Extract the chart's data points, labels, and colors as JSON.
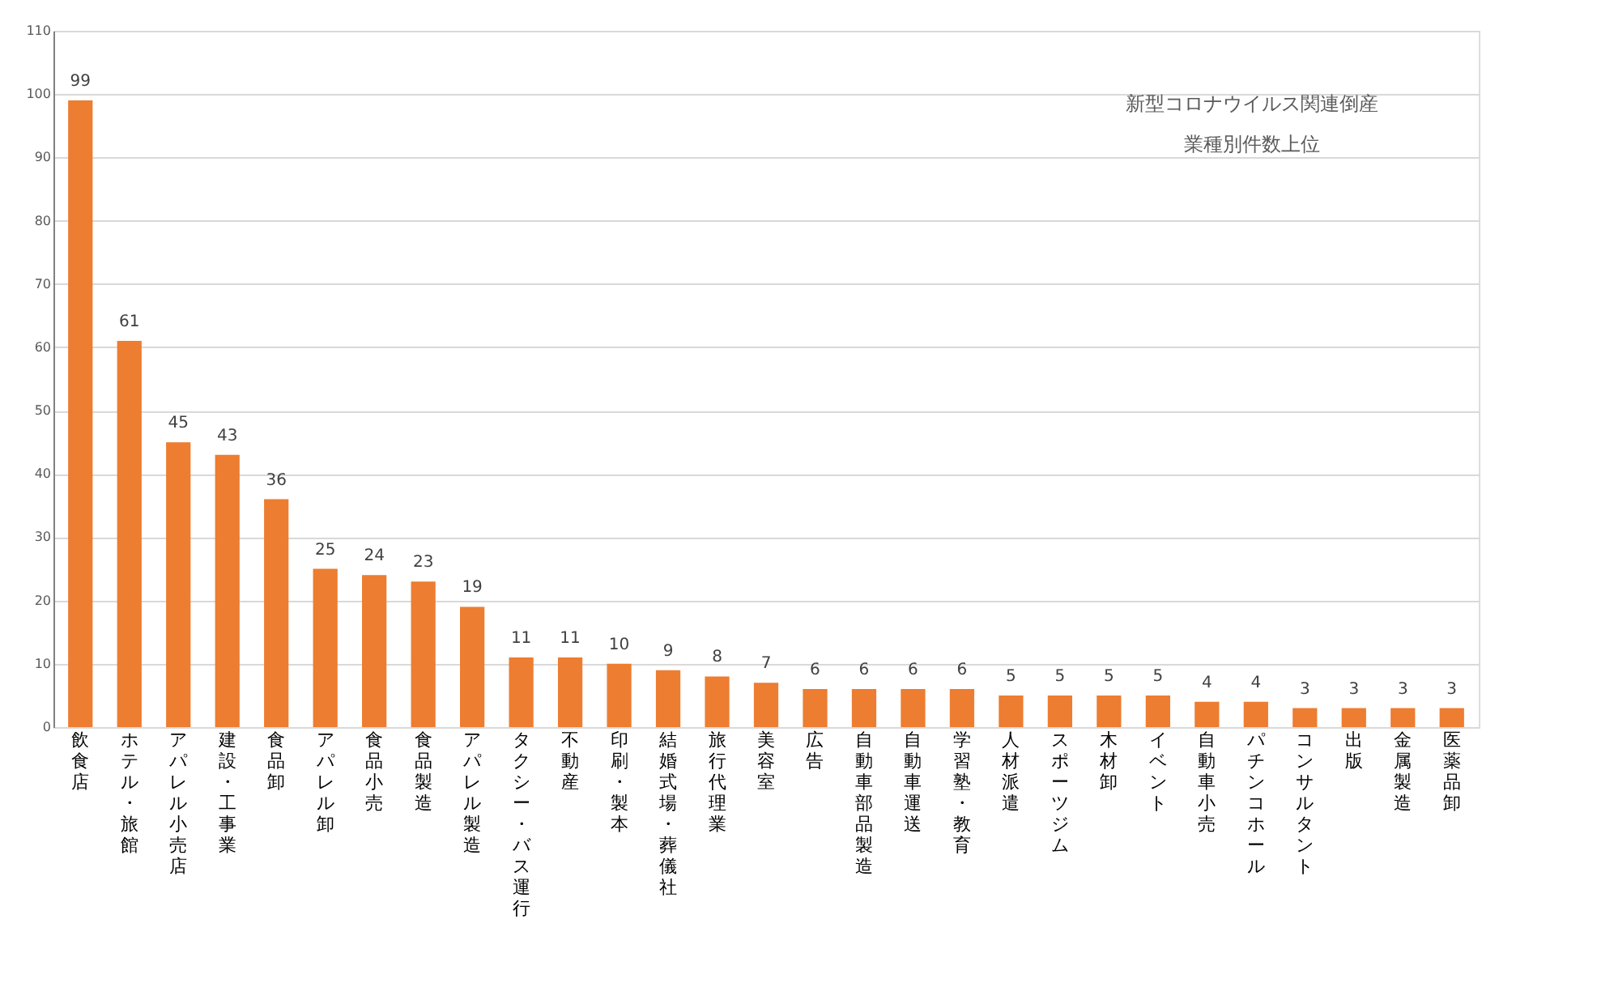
{
  "chart_data": {
    "type": "bar",
    "title": "新型コロナウイルス関連倒産",
    "subtitle": "業種別件数上位",
    "categories": [
      "飲食店",
      "ホテル・旅館",
      "アパレル小売店",
      "建設・工事業",
      "食品卸",
      "アパレル卸",
      "食品小売",
      "食品製造",
      "アパレル製造",
      "タクシー・バス運行",
      "不動産",
      "印刷・製本",
      "結婚式場・葬儀社",
      "旅行代理業",
      "美容室",
      "広告",
      "自動車部品製造",
      "自動車運送",
      "学習塾・教育",
      "人材派遣",
      "スポーツジム",
      "木材卸",
      "イベント",
      "自動車小売",
      "パチンコホール",
      "コンサルタント",
      "出版",
      "金属製造",
      "医薬品卸"
    ],
    "values": [
      99,
      61,
      45,
      43,
      36,
      25,
      24,
      23,
      19,
      11,
      11,
      10,
      9,
      8,
      7,
      6,
      6,
      6,
      6,
      5,
      5,
      5,
      5,
      4,
      4,
      3,
      3,
      3,
      3
    ],
    "color": "#ed7d31",
    "ylim": [
      0,
      110
    ],
    "yticks": [
      0,
      10,
      20,
      30,
      40,
      50,
      60,
      70,
      80,
      90,
      100,
      110
    ],
    "grid": "y",
    "data_labels": true
  }
}
